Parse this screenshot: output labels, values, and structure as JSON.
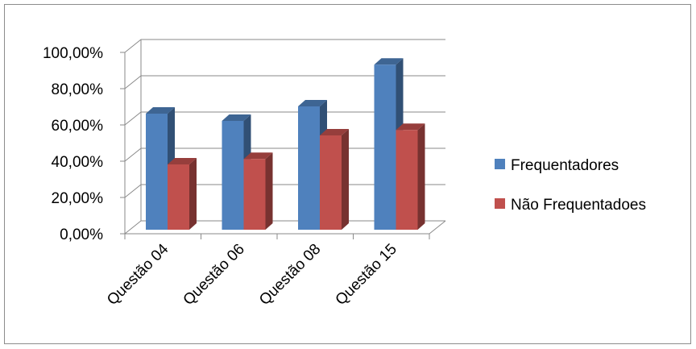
{
  "chart_data": {
    "type": "bar",
    "title": "",
    "xlabel": "",
    "ylabel": "",
    "categories": [
      "Questão 04",
      "Questão 06",
      "Questão 08",
      "Questão 15"
    ],
    "series": [
      {
        "name": "Frequentadores",
        "values": [
          64.0,
          60.0,
          68.0,
          91.0
        ],
        "color": "#4F81BD"
      },
      {
        "name": "Não Frequentadoes",
        "values": [
          36.0,
          39.0,
          52.0,
          55.0
        ],
        "color": "#C0504D"
      }
    ],
    "ylim": [
      0,
      100
    ],
    "y_ticks": [
      "0,00%",
      "20,00%",
      "40,00%",
      "60,00%",
      "80,00%",
      "100,00%"
    ],
    "grid": true,
    "legend_position": "right",
    "style": "3d-clustered-column"
  }
}
